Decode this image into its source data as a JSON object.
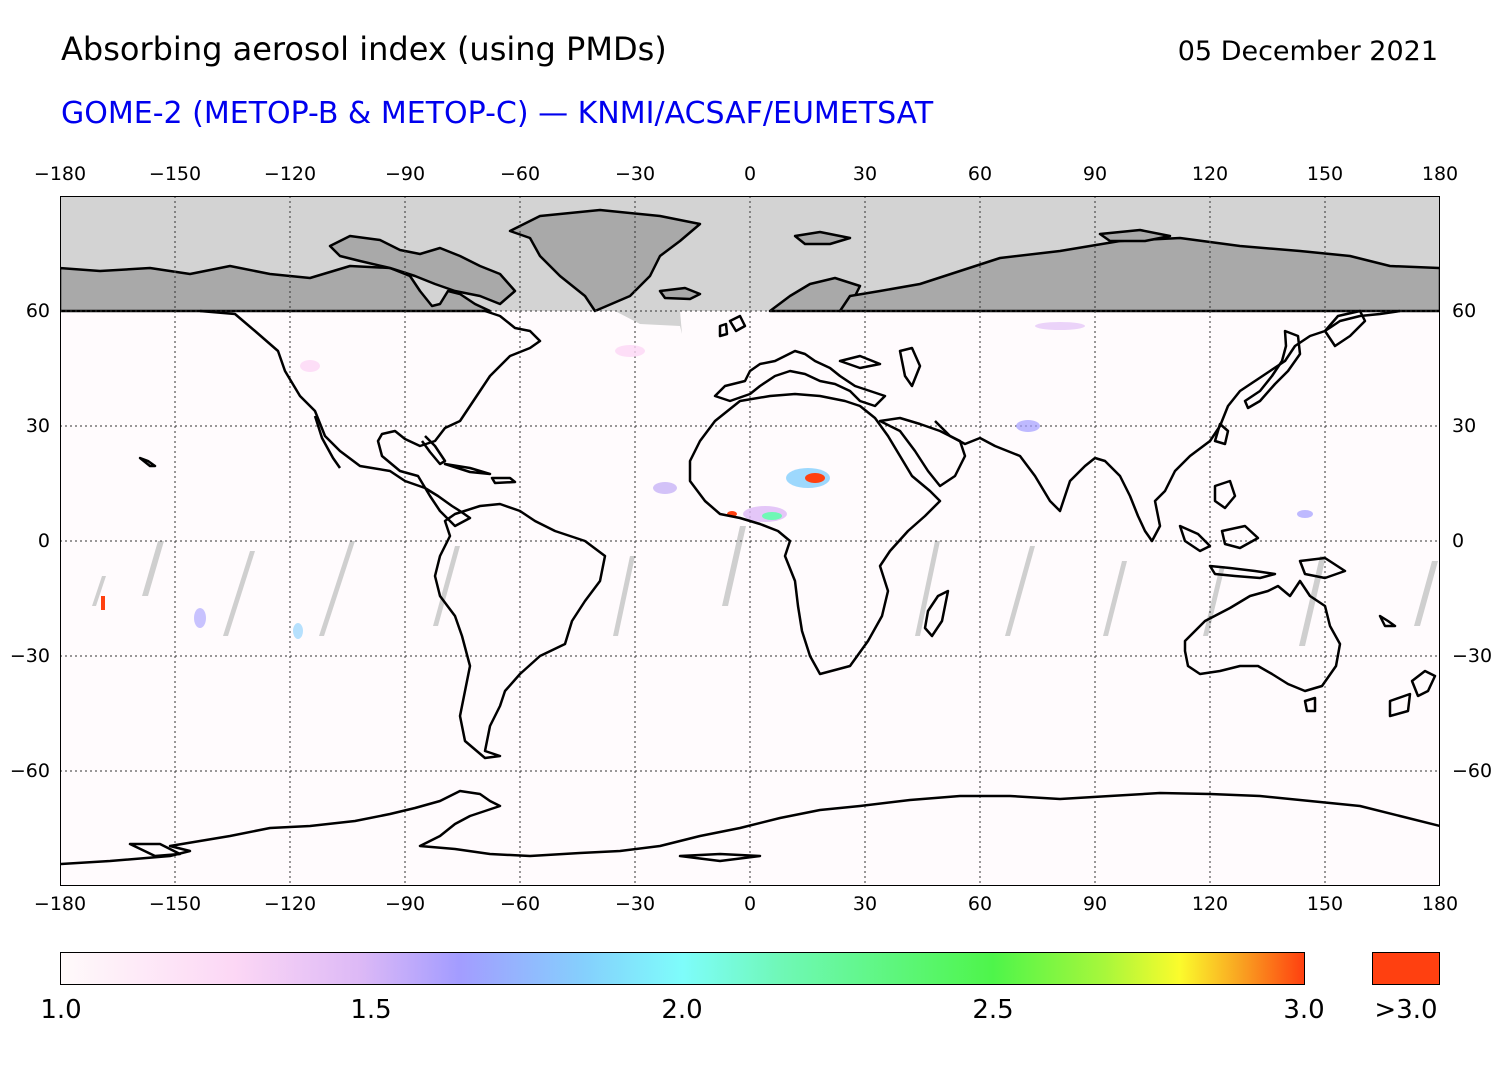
{
  "header": {
    "title": "Absorbing aerosol index (using PMDs)",
    "date": "05 December 2021",
    "subtitle": "GOME-2 (METOP-B & METOP-C) — KNMI/ACSAF/EUMETSAT"
  },
  "map": {
    "projection": "equirectangular",
    "lon_range": [
      -180,
      180
    ],
    "lat_range": [
      -90,
      90
    ],
    "lon_ticks": [
      "−180",
      "−150",
      "−120",
      "−90",
      "−60",
      "−30",
      "0",
      "30",
      "60",
      "90",
      "120",
      "150",
      "180"
    ],
    "lat_ticks": [
      "60",
      "30",
      "0",
      "−30",
      "−60"
    ],
    "gridlines": "dotted",
    "no_data_north_of_lat": 60,
    "colors": {
      "background": "#fffbfd",
      "no_data_ocean": "#d3d3d3",
      "no_data_land": "#a9a9a9",
      "coastline": "#000000"
    },
    "notable_features": [
      {
        "name": "high-index-hotspot-chad",
        "lon": 17,
        "lat": 17,
        "level": ">3.0"
      },
      {
        "name": "moderate-index-gulf-of-guinea",
        "lon": 5,
        "lat": 6,
        "level": "2.0-3.0"
      }
    ]
  },
  "colorbar": {
    "labels": [
      "1.0",
      "1.5",
      "2.0",
      "2.5",
      "3.0"
    ],
    "overflow_label": ">3.0",
    "overflow_color": "#ff4010",
    "stops": [
      "#fffafa",
      "#fcd7f5",
      "#ddb9f6",
      "#a39cff",
      "#85cffd",
      "#7efdfb",
      "#6ff8b6",
      "#4ef54a",
      "#a8f73b",
      "#fbfb2c",
      "#f9a121",
      "#ff4010"
    ]
  }
}
